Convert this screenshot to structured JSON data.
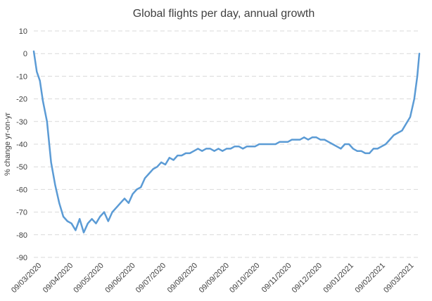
{
  "chart_data": {
    "type": "line",
    "title": "Global flights per day, annual growth",
    "xlabel": "",
    "ylabel": "% change yr-on-yr",
    "ylim": [
      -90,
      10
    ],
    "yticks": [
      10,
      0,
      -10,
      -20,
      -30,
      -40,
      -50,
      -60,
      -70,
      -80,
      -90
    ],
    "xticks": [
      "09/03/2020",
      "09/04/2020",
      "09/05/2020",
      "09/06/2020",
      "09/07/2020",
      "09/08/2020",
      "09/09/2020",
      "09/10/2020",
      "09/11/2020",
      "09/12/2020",
      "09/01/2021",
      "09/02/2021",
      "09/03/2021"
    ],
    "xlim": [
      "2020-03-04",
      "2021-03-17"
    ],
    "grid": "horizontal dashed",
    "series_color": "#5B9BD5",
    "series": [
      {
        "values_description": "daily values, weekly sampled anchors",
        "x": [
          "2020-03-04",
          "2020-03-07",
          "2020-03-10",
          "2020-03-13",
          "2020-03-17",
          "2020-03-21",
          "2020-03-25",
          "2020-03-29",
          "2020-04-02",
          "2020-04-06",
          "2020-04-10",
          "2020-04-14",
          "2020-04-18",
          "2020-04-22",
          "2020-04-26",
          "2020-04-30",
          "2020-05-04",
          "2020-05-08",
          "2020-05-12",
          "2020-05-16",
          "2020-05-20",
          "2020-05-24",
          "2020-05-28",
          "2020-06-01",
          "2020-06-05",
          "2020-06-09",
          "2020-06-13",
          "2020-06-17",
          "2020-06-21",
          "2020-06-25",
          "2020-06-29",
          "2020-07-03",
          "2020-07-07",
          "2020-07-11",
          "2020-07-15",
          "2020-07-19",
          "2020-07-23",
          "2020-07-27",
          "2020-07-31",
          "2020-08-04",
          "2020-08-08",
          "2020-08-12",
          "2020-08-16",
          "2020-08-20",
          "2020-08-24",
          "2020-08-28",
          "2020-09-01",
          "2020-09-05",
          "2020-09-09",
          "2020-09-13",
          "2020-09-17",
          "2020-09-21",
          "2020-09-25",
          "2020-09-29",
          "2020-10-03",
          "2020-10-07",
          "2020-10-11",
          "2020-10-15",
          "2020-10-19",
          "2020-10-23",
          "2020-10-27",
          "2020-10-31",
          "2020-11-04",
          "2020-11-08",
          "2020-11-12",
          "2020-11-16",
          "2020-11-20",
          "2020-11-24",
          "2020-11-28",
          "2020-12-02",
          "2020-12-06",
          "2020-12-10",
          "2020-12-14",
          "2020-12-18",
          "2020-12-22",
          "2020-12-26",
          "2020-12-30",
          "2021-01-03",
          "2021-01-07",
          "2021-01-11",
          "2021-01-15",
          "2021-01-19",
          "2021-01-23",
          "2021-01-27",
          "2021-01-31",
          "2021-02-04",
          "2021-02-08",
          "2021-02-12",
          "2021-02-16",
          "2021-02-20",
          "2021-02-24",
          "2021-02-28",
          "2021-03-04",
          "2021-03-08",
          "2021-03-12",
          "2021-03-15",
          "2021-03-17"
        ],
        "values": [
          1,
          -8,
          -12,
          -21,
          -30,
          -48,
          -58,
          -66,
          -72,
          -74,
          -75,
          -78,
          -73,
          -79,
          -75,
          -73,
          -75,
          -72,
          -70,
          -74,
          -70,
          -68,
          -66,
          -64,
          -66,
          -62,
          -60,
          -59,
          -55,
          -53,
          -51,
          -50,
          -48,
          -49,
          -46,
          -47,
          -45,
          -45,
          -44,
          -44,
          -43,
          -42,
          -43,
          -42,
          -42,
          -43,
          -42,
          -43,
          -42,
          -42,
          -41,
          -41,
          -42,
          -41,
          -41,
          -41,
          -40,
          -40,
          -40,
          -40,
          -40,
          -39,
          -39,
          -39,
          -38,
          -38,
          -38,
          -37,
          -38,
          -37,
          -37,
          -38,
          -38,
          -39,
          -40,
          -41,
          -42,
          -40,
          -40,
          -42,
          -43,
          -43,
          -44,
          -44,
          -42,
          -42,
          -41,
          -40,
          -38,
          -36,
          -35,
          -34,
          -31,
          -28,
          -20,
          -10,
          0
        ]
      }
    ]
  }
}
